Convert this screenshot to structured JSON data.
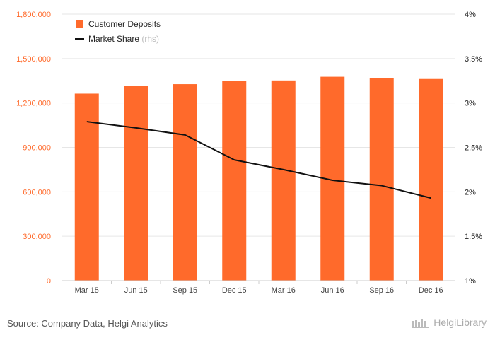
{
  "chart_data": {
    "type": "bar+line",
    "categories": [
      "Mar 15",
      "Jun 15",
      "Sep 15",
      "Dec 15",
      "Mar 16",
      "Jun 16",
      "Sep 16",
      "Dec 16"
    ],
    "series": [
      {
        "name": "Customer Deposits",
        "type": "bar",
        "axis": "left",
        "color": "#ff6a2b",
        "values": [
          1263000,
          1313000,
          1327000,
          1348000,
          1352000,
          1377000,
          1367000,
          1362000
        ]
      },
      {
        "name": "Market Share",
        "legend_suffix": "(rhs)",
        "type": "line",
        "axis": "right",
        "color": "#111111",
        "values": [
          2.79,
          2.72,
          2.64,
          2.36,
          2.25,
          2.13,
          2.07,
          1.93
        ]
      }
    ],
    "y_left": {
      "min": 0,
      "max": 1800000,
      "ticks": [
        0,
        300000,
        600000,
        900000,
        1200000,
        1500000,
        1800000
      ],
      "tick_labels": [
        "0",
        "300,000",
        "600,000",
        "900,000",
        "1,200,000",
        "1,500,000",
        "1,800,000"
      ],
      "label_color": "#ff6a2b"
    },
    "y_right": {
      "min": 1,
      "max": 4,
      "ticks": [
        1,
        1.5,
        2,
        2.5,
        3,
        3.5,
        4
      ],
      "tick_labels": [
        "1%",
        "1.5%",
        "2%",
        "2.5%",
        "3%",
        "3.5%",
        "4%"
      ]
    },
    "grid": true,
    "legend_position": "top-left"
  },
  "footer": {
    "source": "Source: Company Data, Helgi Analytics",
    "brand": "HelgiLibrary"
  }
}
